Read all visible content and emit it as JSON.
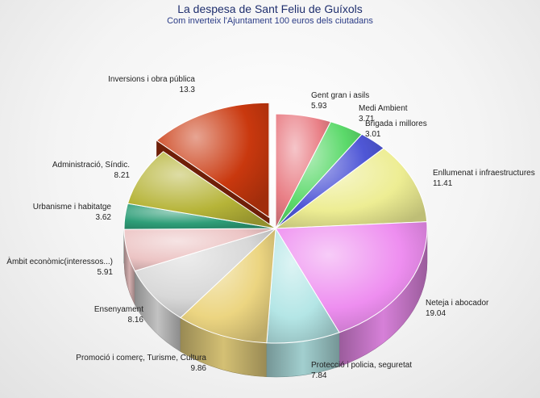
{
  "chart_data": {
    "type": "pie",
    "title": "La despesa de Sant Feliu de Guíxols",
    "subtitle": "Com inverteix l'Ajuntament 100 euros dels ciutadans",
    "slices": [
      {
        "label": "Gent gran i asils",
        "value": 5.93,
        "color": "#e97f86",
        "exploded": false
      },
      {
        "label": "Medi Ambient",
        "value": 3.71,
        "color": "#5bd96a",
        "exploded": false
      },
      {
        "label": "Brigada i millores",
        "value": 3.01,
        "color": "#4f57d6",
        "exploded": false
      },
      {
        "label": "Enllumenat i infraestructures",
        "value": 11.41,
        "color": "#eded93",
        "exploded": false
      },
      {
        "label": "Neteja i abocador",
        "value": 19.04,
        "color": "#ee8ef0",
        "exploded": false
      },
      {
        "label": "Protecció i policia, seguretat",
        "value": 7.84,
        "color": "#b4e6e6",
        "exploded": false
      },
      {
        "label": "Promoció i comerç, Turisme, Cultura",
        "value": 9.86,
        "color": "#ecd581",
        "exploded": false
      },
      {
        "label": "Ensenyament",
        "value": 8.16,
        "color": "#d8d8d8",
        "exploded": false
      },
      {
        "label": "Àmbit econòmic(interessos...)",
        "value": 5.91,
        "color": "#ecc4c4",
        "exploded": false
      },
      {
        "label": "Urbanisme i habitatge",
        "value": 3.62,
        "color": "#2e9e78",
        "exploded": false
      },
      {
        "label": "Administració, Síndic.",
        "value": 8.21,
        "color": "#b6b438",
        "exploded": false
      },
      {
        "label": "Inversions i obra pública",
        "value": 13.3,
        "color": "#c9380e",
        "exploded": true
      }
    ]
  }
}
